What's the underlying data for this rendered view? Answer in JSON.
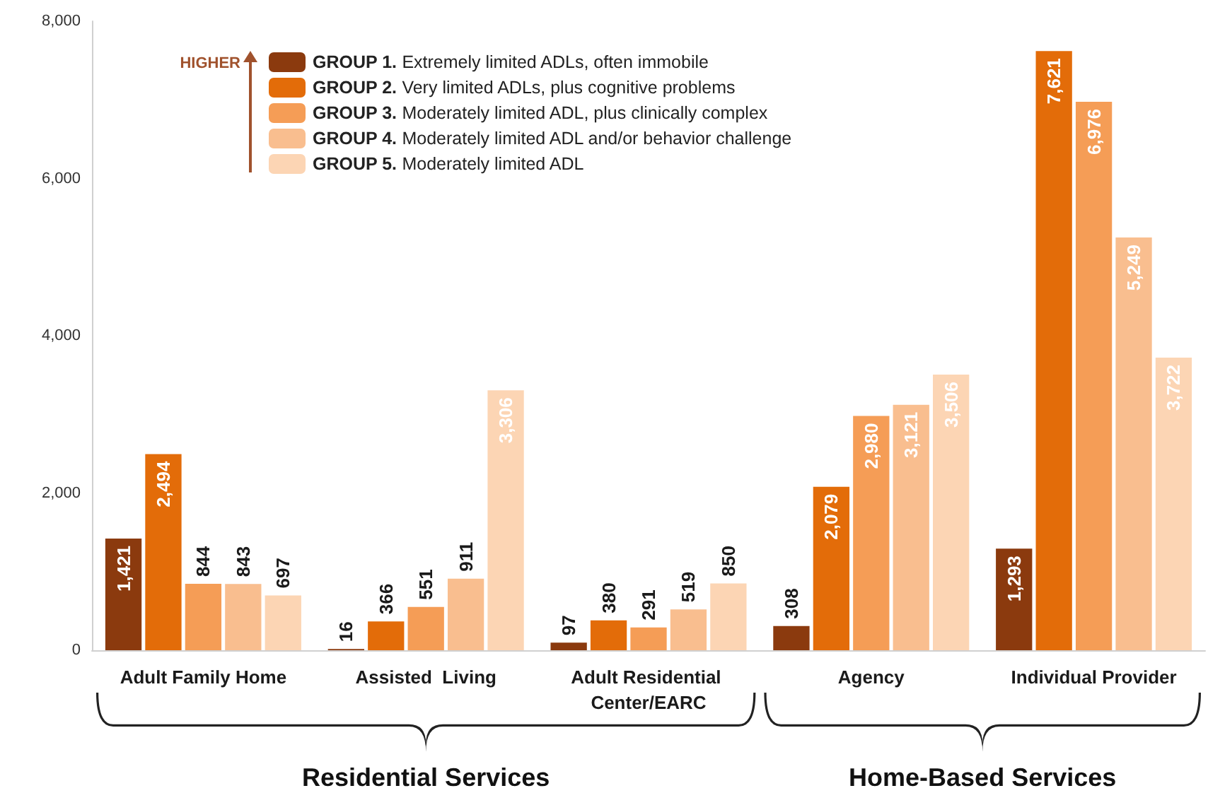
{
  "chart_data": {
    "type": "bar",
    "categories": [
      "Adult Family Home",
      "Assisted  Living",
      "Adult Residential Center/EARC",
      "Agency",
      "Individual Provider"
    ],
    "series": [
      {
        "name": "GROUP 1. Extremely limited ADLs, often immobile",
        "color": "#8b3a0e",
        "values": [
          1421,
          16,
          97,
          308,
          1293
        ],
        "value_labels": [
          "1,421",
          "16",
          "97",
          "308",
          "1,293"
        ]
      },
      {
        "name": "GROUP 2. Very limited ADLs, plus cognitive problems",
        "color": "#e36c09",
        "values": [
          2494,
          366,
          380,
          2079,
          7621
        ],
        "value_labels": [
          "2,494",
          "366",
          "380",
          "2,079",
          "7,621"
        ]
      },
      {
        "name": "GROUP 3. Moderately limited ADL, plus clinically complex",
        "color": "#f59d56",
        "values": [
          844,
          551,
          291,
          2980,
          6976
        ],
        "value_labels": [
          "844",
          "551",
          "291",
          "2,980",
          "6,976"
        ]
      },
      {
        "name": "GROUP 4. Moderately limited ADL and/or behavior challenge",
        "color": "#f9be8f",
        "values": [
          843,
          911,
          519,
          3121,
          5249
        ],
        "value_labels": [
          "843",
          "911",
          "519",
          "3,121",
          "5,249"
        ]
      },
      {
        "name": "GROUP 5. Moderately limited ADL",
        "color": "#fcd5b4",
        "values": [
          697,
          3306,
          850,
          3506,
          3722
        ],
        "value_labels": [
          "697",
          "3,306",
          "850",
          "3,506",
          "3,722"
        ]
      }
    ],
    "ylim": [
      0,
      8000
    ],
    "yticks": [
      0,
      {
        "value": 2000,
        "label": "2,000"
      },
      {
        "value": 4000,
        "label": "4,000"
      },
      {
        "value": 6000,
        "label": "6,000"
      },
      {
        "value": 8000,
        "label": "8,000"
      }
    ],
    "grid": false,
    "legend": "top left",
    "annotations": [
      "HIGHER",
      "Residential Services",
      "Home-Based Services"
    ]
  }
}
